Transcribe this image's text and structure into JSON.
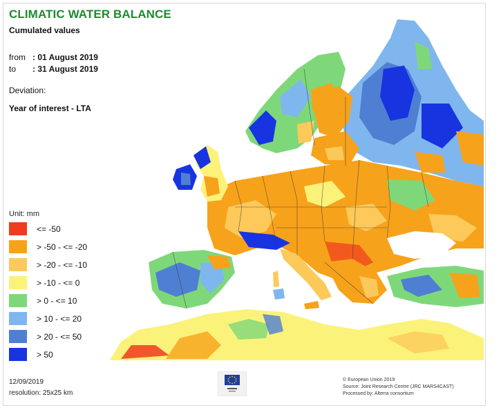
{
  "title": "CLIMATIC WATER BALANCE",
  "subtitle": "Cumulated values",
  "period": {
    "from_label": "from",
    "from_value": ": 01 August 2019",
    "to_label": "to",
    "to_value": ": 31 August 2019"
  },
  "deviation_label": "Deviation:",
  "year_of_interest": "Year of interest - LTA",
  "legend": {
    "unit": "Unit: mm",
    "items": [
      {
        "label": "<= -50",
        "color": "#f03c1e"
      },
      {
        "label": "> -50 - <= -20",
        "color": "#f7a21b"
      },
      {
        "label": "> -20 - <= -10",
        "color": "#fcc95a"
      },
      {
        "label": "> -10 - <= 0",
        "color": "#fbf27a"
      },
      {
        "label": "> 0 - <= 10",
        "color": "#7ed87a"
      },
      {
        "label": "> 10 - <= 20",
        "color": "#7fb6ee"
      },
      {
        "label": "> 20 - <= 50",
        "color": "#4f7fd3"
      },
      {
        "label": "> 50",
        "color": "#1834e0"
      }
    ]
  },
  "footer": {
    "date": "12/09/2019",
    "resolution": "resolution: 25x25 km",
    "credits": [
      "© European Union 2019",
      "Source: Joint Research Centre (JRC MARS4CAST)",
      "Processed by: Alterra consortium"
    ]
  },
  "colors": {
    "title_green": "#1e8a2e",
    "sea": "#ffffff",
    "border": "#333333"
  },
  "icons": [
    "eu-flag-icon"
  ]
}
